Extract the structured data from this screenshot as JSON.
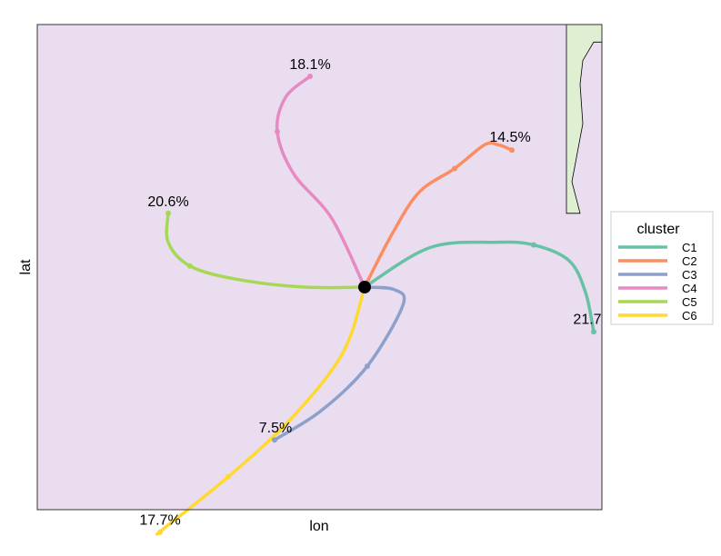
{
  "chart_data": {
    "type": "line",
    "title": "",
    "xlabel": "lon",
    "ylabel": "lat",
    "grid": false,
    "legend": {
      "title": "cluster",
      "position": "right",
      "entries": [
        "C1",
        "C2",
        "C3",
        "C4",
        "C5",
        "C6"
      ]
    },
    "origin": [
      0,
      0
    ],
    "xlim": [
      -100,
      100
    ],
    "ylim": [
      -100,
      100
    ],
    "series": [
      {
        "name": "C1",
        "color": "#66C2A5",
        "label": "21.7",
        "x": [
          0,
          24,
          48,
          62,
          75,
          81,
          84
        ],
        "y": [
          0,
          15,
          17,
          16,
          10,
          -2,
          -17
        ]
      },
      {
        "name": "C2",
        "color": "#FC8D62",
        "label": "14.5%",
        "x": [
          0,
          10,
          20,
          33,
          44,
          49,
          54
        ],
        "y": [
          0,
          20,
          36,
          45,
          54,
          54,
          52
        ]
      },
      {
        "name": "C3",
        "color": "#8DA0CB",
        "label": "7.5%",
        "x": [
          0,
          11,
          14,
          1,
          -16,
          -33
        ],
        "y": [
          0,
          -1,
          -7,
          -30,
          -47,
          -58
        ]
      },
      {
        "name": "C4",
        "color": "#E78AC3",
        "label": "18.1%",
        "x": [
          0,
          -12,
          -26,
          -32,
          -29,
          -20
        ],
        "y": [
          0,
          26,
          43,
          59,
          72,
          80
        ]
      },
      {
        "name": "C5",
        "color": "#A6D854",
        "label": "20.6%",
        "x": [
          0,
          -22,
          -47,
          -64,
          -72,
          -72
        ],
        "y": [
          0,
          0,
          3,
          8,
          17,
          28
        ]
      },
      {
        "name": "C6",
        "color": "#FFD92F",
        "label": "17.7%",
        "x": [
          0,
          -8,
          -27,
          -50,
          -74,
          -75
        ],
        "y": [
          0,
          -25,
          -50,
          -72,
          -92,
          -93
        ]
      }
    ],
    "origin_marker": {
      "x": 0,
      "y": 0,
      "color": "#000000"
    },
    "land_color": "#DFF0D2",
    "land_outline": [
      [
        74,
        93
      ],
      [
        74,
        70
      ],
      [
        74,
        40
      ],
      [
        74,
        28
      ],
      [
        79,
        28
      ],
      [
        76,
        40
      ],
      [
        80,
        62
      ],
      [
        79,
        77
      ],
      [
        80,
        86
      ],
      [
        84,
        93
      ]
    ],
    "panel_background": "#E9DDEF"
  }
}
